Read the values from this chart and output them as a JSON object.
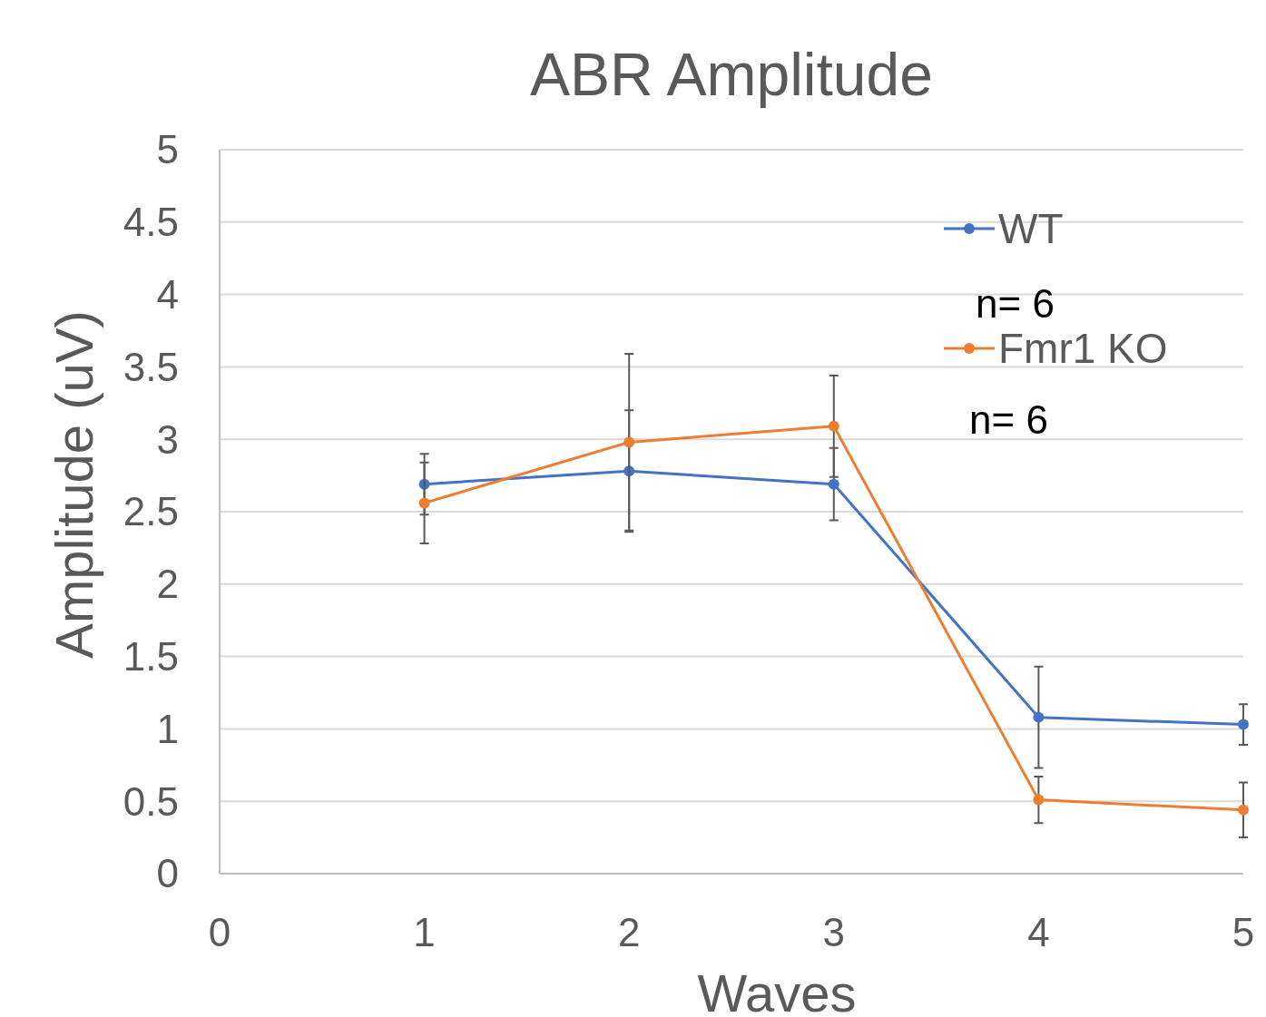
{
  "chart_data": {
    "type": "line",
    "title": "ABR Amplitude",
    "xlabel": "Waves",
    "ylabel": "Amplitude (uV)",
    "x": [
      1,
      2,
      3,
      4,
      5
    ],
    "series": [
      {
        "name": "WT",
        "color": "#4472c4",
        "values": [
          2.69,
          2.78,
          2.69,
          1.08,
          1.03
        ],
        "errors": [
          0.21,
          0.42,
          0.25,
          0.35,
          0.14
        ]
      },
      {
        "name": "Fmr1 KO",
        "color": "#ed7d31",
        "values": [
          2.56,
          2.98,
          3.09,
          0.51,
          0.44
        ],
        "errors": [
          0.28,
          0.61,
          0.35,
          0.16,
          0.19
        ]
      }
    ],
    "xlim": [
      0,
      5
    ],
    "xticks": [
      0,
      1,
      2,
      3,
      4,
      5
    ],
    "ylim": [
      0,
      5
    ],
    "yticks": [
      0,
      0.5,
      1,
      1.5,
      2,
      2.5,
      3,
      3.5,
      4,
      4.5,
      5
    ],
    "grid": "y",
    "legend": "top right",
    "marker": "circle",
    "line_style": "solid",
    "annotations": [
      "n= 6",
      "n= 6"
    ]
  }
}
